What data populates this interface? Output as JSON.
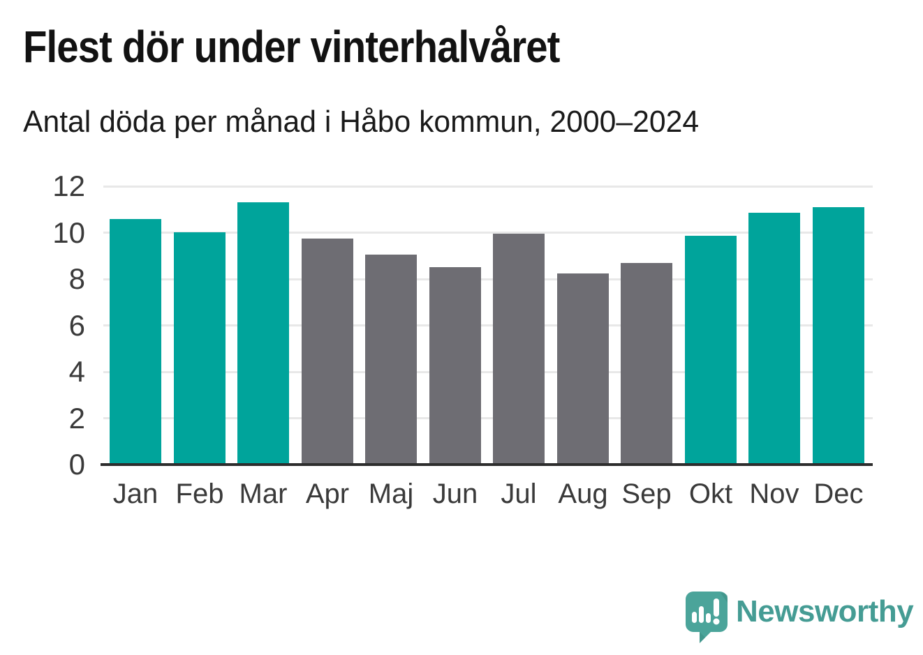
{
  "header": {
    "title": "Flest dör under vinterhalvåret",
    "subtitle": "Antal döda per månad i Håbo kommun, 2000–2024"
  },
  "chart_data": {
    "type": "bar",
    "title": "Flest dör under vinterhalvåret",
    "subtitle": "Antal döda per månad i Håbo kommun, 2000–2024",
    "categories": [
      "Jan",
      "Feb",
      "Mar",
      "Apr",
      "Maj",
      "Jun",
      "Jul",
      "Aug",
      "Sep",
      "Okt",
      "Nov",
      "Dec"
    ],
    "values": [
      10.6,
      10.0,
      11.3,
      9.75,
      9.05,
      8.5,
      9.95,
      8.25,
      8.7,
      9.85,
      10.85,
      11.1
    ],
    "highlight": [
      true,
      true,
      true,
      false,
      false,
      false,
      false,
      false,
      false,
      true,
      true,
      true
    ],
    "highlighted_categories": [
      "Jan",
      "Feb",
      "Mar",
      "Okt",
      "Nov",
      "Dec"
    ],
    "xlabel": "",
    "ylabel": "",
    "yticks": [
      0,
      2,
      4,
      6,
      8,
      10,
      12
    ],
    "ylim": [
      0,
      12
    ],
    "grid": true,
    "legend": "none"
  },
  "colors": {
    "bar_highlight_teal": "#00a49b",
    "bar_neutral_gray": "#6e6d73",
    "gridline": "#e8e8e8",
    "axis_line": "#2d2d2d",
    "tick_text": "#3a3a3a",
    "title_text": "#121212",
    "logo_teal": "#4ba49a",
    "logo_teal_dark": "#3d8d84",
    "wordmark_teal": "#459c94"
  },
  "footer": {
    "brand": "Newsworthy"
  }
}
